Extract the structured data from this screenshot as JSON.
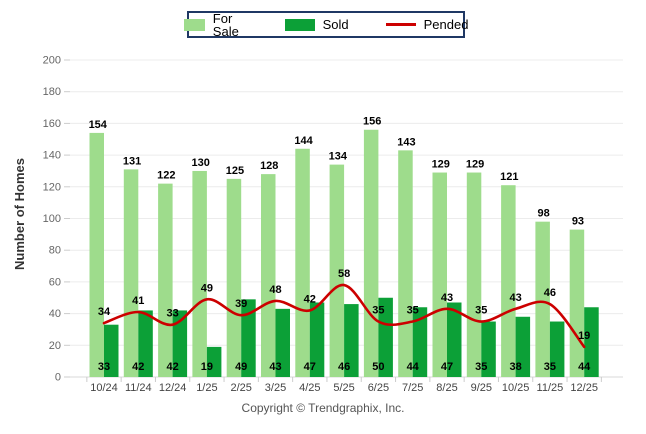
{
  "legend": {
    "items": [
      {
        "label": "For Sale",
        "swatch": "light-green-bar"
      },
      {
        "label": "Sold",
        "swatch": "dark-green-bar"
      },
      {
        "label": "Pended",
        "swatch": "red-line"
      }
    ]
  },
  "ylabel": "Number of Homes",
  "footer": "Copyright © Trendgraphix, Inc.",
  "colors": {
    "for_sale": "#9EDC8C",
    "sold": "#0CA037",
    "pended": "#CC0000",
    "legend_border": "#1F3864",
    "grid": "#ECECEC",
    "axis_line": "#D8D8D8",
    "tick": "#CCCCCC",
    "y_tick_text": "#666666",
    "x_tick_text": "#444444",
    "value_label": "#000000"
  },
  "chart_data": {
    "type": "bar",
    "title": "",
    "xlabel": "",
    "ylabel": "Number of Homes",
    "categories": [
      "10/24",
      "11/24",
      "12/24",
      "1/25",
      "2/25",
      "3/25",
      "4/25",
      "5/25",
      "6/25",
      "7/25",
      "8/25",
      "9/25",
      "10/25",
      "11/25",
      "12/25"
    ],
    "series": [
      {
        "name": "For Sale",
        "render": "bar",
        "values": [
          154,
          131,
          122,
          130,
          125,
          128,
          144,
          134,
          156,
          143,
          129,
          129,
          121,
          98,
          93
        ]
      },
      {
        "name": "Sold",
        "render": "bar",
        "values": [
          33,
          42,
          42,
          19,
          49,
          43,
          47,
          46,
          50,
          44,
          47,
          35,
          38,
          35,
          44
        ]
      },
      {
        "name": "Pended",
        "render": "line",
        "values": [
          34,
          41,
          33,
          49,
          39,
          48,
          42,
          58,
          35,
          35,
          43,
          35,
          43,
          46,
          19
        ]
      }
    ],
    "ylim": [
      0,
      200
    ],
    "yticks": [
      0,
      20,
      40,
      60,
      80,
      100,
      120,
      140,
      160,
      180,
      200
    ],
    "grid": true,
    "legend_position": "top-center"
  }
}
